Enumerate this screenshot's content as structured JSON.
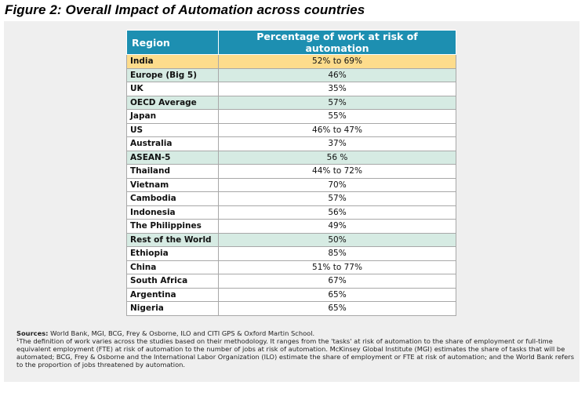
{
  "figure": {
    "title": "Figure 2: Overall Impact of Automation across countries"
  },
  "table": {
    "headers": {
      "region": "Region",
      "percentage": "Percentage of work at risk of automation"
    },
    "rows": [
      {
        "region": "India",
        "value": "52% to 69%",
        "style": "highlight"
      },
      {
        "region": "Europe (Big 5)",
        "value": "46%",
        "style": "green"
      },
      {
        "region": "UK",
        "value": "35%",
        "style": "plain"
      },
      {
        "region": "OECD Average",
        "value": "57%",
        "style": "green"
      },
      {
        "region": "Japan",
        "value": "55%",
        "style": "plain"
      },
      {
        "region": "US",
        "value": "46% to 47%",
        "style": "plain"
      },
      {
        "region": "Australia",
        "value": "37%",
        "style": "plain"
      },
      {
        "region": "ASEAN-5",
        "value": "56 %",
        "style": "green"
      },
      {
        "region": "Thailand",
        "value": "44% to 72%",
        "style": "plain"
      },
      {
        "region": "Vietnam",
        "value": "70%",
        "style": "plain"
      },
      {
        "region": "Cambodia",
        "value": "57%",
        "style": "plain"
      },
      {
        "region": "Indonesia",
        "value": "56%",
        "style": "plain"
      },
      {
        "region": "The Philippines",
        "value": "49%",
        "style": "plain"
      },
      {
        "region": "Rest of the World",
        "value": "50%",
        "style": "green"
      },
      {
        "region": "Ethiopia",
        "value": "85%",
        "style": "plain"
      },
      {
        "region": "China",
        "value": "51% to 77%",
        "style": "plain"
      },
      {
        "region": "South Africa",
        "value": "67%",
        "style": "plain"
      },
      {
        "region": "Argentina",
        "value": "65%",
        "style": "plain"
      },
      {
        "region": "Nigeria",
        "value": "65%",
        "style": "plain"
      }
    ]
  },
  "notes": {
    "sources_label": "Sources:",
    "sources_text": " World Bank, MGI, BCG, Frey & Osborne, ILO and CITI GPS & Oxford Martin School.",
    "footnote": "¹The definition of work varies across the studies based on their methodology. It ranges from the 'tasks' at risk of automation to the share of employment or full-time equivalent employment (FTE) at risk of automation to the number of jobs at risk of automation. McKinsey Global Institute (MGI) estimates the share of tasks that will be automated; BCG, Frey & Osborne and the International Labor Organization (ILO) estimate the share of employment or FTE at risk of automation; and the World Bank refers to the proportion of jobs threatened by automation."
  },
  "colors": {
    "header_bg": "#1d8fb1",
    "highlight_row": "#fddc8c",
    "green_row": "#d6ebe3",
    "panel_bg": "#efefef"
  }
}
